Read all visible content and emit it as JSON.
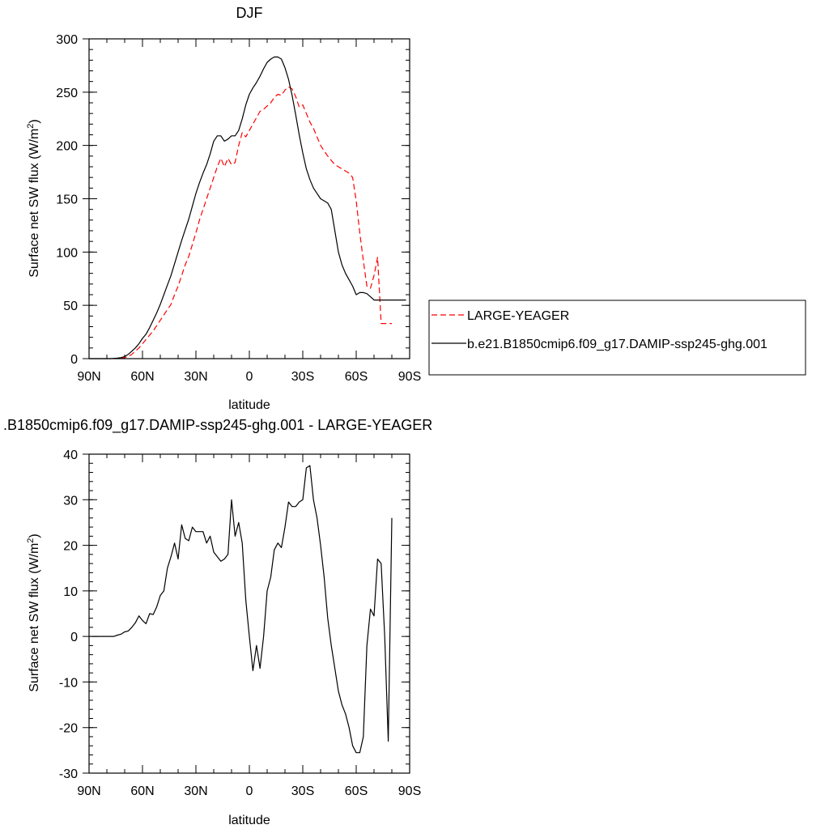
{
  "chart_data": [
    {
      "type": "line",
      "title": "DJF",
      "xlabel": "latitude",
      "ylabel_main": "Surface net SW flux (W/m",
      "ylabel_sup": "2",
      "ylabel_end": ")",
      "xlim": [
        90,
        -90
      ],
      "ylim": [
        0,
        300
      ],
      "x_ticks": [
        {
          "value": 90,
          "label": "90N"
        },
        {
          "value": 60,
          "label": "60N"
        },
        {
          "value": 30,
          "label": "30N"
        },
        {
          "value": 0,
          "label": "0"
        },
        {
          "value": -30,
          "label": "30S"
        },
        {
          "value": -60,
          "label": "60S"
        },
        {
          "value": -90,
          "label": "90S"
        }
      ],
      "y_ticks": [
        0,
        50,
        100,
        150,
        200,
        250,
        300
      ],
      "legend_position": "right",
      "series": [
        {
          "name": "LARGE-YEAGER",
          "color": "#ff0000",
          "dash": "dashed",
          "x": [
            72,
            70,
            68,
            66,
            64,
            62,
            60,
            58,
            56,
            54,
            52,
            50,
            48,
            46,
            44,
            42,
            40,
            38,
            36,
            34,
            32,
            30,
            28,
            26,
            24,
            22,
            20,
            18,
            16,
            14,
            12,
            10,
            8,
            6,
            4,
            2,
            0,
            -2,
            -4,
            -6,
            -8,
            -10,
            -12,
            -14,
            -16,
            -18,
            -20,
            -22,
            -24,
            -26,
            -28,
            -30,
            -32,
            -34,
            -36,
            -38,
            -40,
            -42,
            -44,
            -46,
            -48,
            -50,
            -52,
            -54,
            -56,
            -58,
            -60,
            -62,
            -64,
            -66,
            -68,
            -70,
            -72,
            -74,
            -76,
            -78,
            -80
          ],
          "y": [
            0,
            1,
            2,
            4,
            7,
            10,
            14,
            18,
            22,
            26,
            31,
            36,
            41,
            46,
            51,
            60,
            68,
            78,
            88,
            96,
            107,
            118,
            130,
            140,
            150,
            160,
            170,
            180,
            188,
            180,
            188,
            182,
            184,
            200,
            212,
            208,
            214,
            220,
            226,
            232,
            234,
            237,
            240,
            245,
            248,
            247,
            252,
            255,
            253,
            246,
            236,
            238,
            230,
            222,
            216,
            208,
            200,
            195,
            190,
            186,
            182,
            180,
            178,
            176,
            174,
            170,
            148,
            118,
            92,
            68,
            66,
            78,
            95,
            33,
            33,
            33,
            33
          ]
        },
        {
          "name": "b.e21.B1850cmip6.f09_g17.DAMIP-ssp245-ghg.001",
          "color": "#000000",
          "dash": "solid",
          "x": [
            90,
            86,
            82,
            78,
            74,
            72,
            70,
            68,
            66,
            64,
            62,
            60,
            58,
            56,
            54,
            52,
            50,
            48,
            46,
            44,
            42,
            40,
            38,
            36,
            34,
            32,
            30,
            28,
            26,
            24,
            22,
            20,
            18,
            16,
            14,
            12,
            10,
            8,
            6,
            4,
            2,
            0,
            -2,
            -4,
            -6,
            -8,
            -10,
            -12,
            -14,
            -16,
            -18,
            -20,
            -22,
            -24,
            -26,
            -28,
            -30,
            -32,
            -34,
            -36,
            -38,
            -40,
            -42,
            -44,
            -46,
            -48,
            -50,
            -52,
            -54,
            -56,
            -58,
            -60,
            -62,
            -64,
            -66,
            -68,
            -70,
            -72,
            -74,
            -76,
            -78,
            -80,
            -82,
            -84,
            -86,
            -88
          ],
          "y": [
            0,
            0,
            0,
            0,
            0.5,
            1,
            2,
            4,
            7,
            10,
            14,
            19,
            23,
            29,
            36,
            43,
            51,
            60,
            69,
            78,
            89,
            100,
            111,
            121,
            131,
            143,
            155,
            165,
            174,
            182,
            192,
            204,
            209,
            209,
            204,
            206,
            209,
            209,
            214,
            225,
            238,
            248,
            254,
            259,
            265,
            272,
            278,
            281,
            283,
            283,
            281,
            273,
            262,
            247,
            229,
            210,
            193,
            178,
            168,
            160,
            155,
            150,
            148,
            146,
            140,
            120,
            100,
            88,
            80,
            74,
            68,
            60,
            62,
            62,
            61,
            58,
            55,
            55,
            55,
            55,
            55,
            55,
            55,
            55,
            55,
            55
          ]
        }
      ]
    },
    {
      "type": "line",
      "title": ".B1850cmip6.f09_g17.DAMIP-ssp245-ghg.001 - LARGE-YEAGER",
      "xlabel": "latitude",
      "ylabel_main": "Surface net SW flux (W/m",
      "ylabel_sup": "2",
      "ylabel_end": ")",
      "xlim": [
        90,
        -90
      ],
      "ylim": [
        -30,
        40
      ],
      "x_ticks": [
        {
          "value": 90,
          "label": "90N"
        },
        {
          "value": 60,
          "label": "60N"
        },
        {
          "value": 30,
          "label": "30N"
        },
        {
          "value": 0,
          "label": "0"
        },
        {
          "value": -30,
          "label": "30S"
        },
        {
          "value": -60,
          "label": "60S"
        },
        {
          "value": -90,
          "label": "90S"
        }
      ],
      "y_ticks": [
        -30,
        -20,
        -10,
        0,
        10,
        20,
        30,
        40
      ],
      "series": [
        {
          "name": "",
          "color": "#000000",
          "dash": "solid",
          "x": [
            88,
            84,
            80,
            76,
            74,
            72,
            70,
            68,
            66,
            64,
            62,
            60,
            58,
            56,
            54,
            52,
            50,
            48,
            46,
            44,
            42,
            40,
            38,
            36,
            34,
            32,
            30,
            28,
            26,
            24,
            22,
            20,
            18,
            16,
            14,
            12,
            10,
            8,
            6,
            4,
            2,
            0,
            -2,
            -4,
            -6,
            -8,
            -10,
            -12,
            -14,
            -16,
            -18,
            -20,
            -22,
            -24,
            -26,
            -28,
            -30,
            -32,
            -34,
            -36,
            -38,
            -40,
            -42,
            -44,
            -46,
            -48,
            -50,
            -52,
            -54,
            -56,
            -58,
            -60,
            -62,
            -64,
            -66,
            -68,
            -70,
            -72,
            -74,
            -76,
            -78,
            -80
          ],
          "y": [
            0,
            0,
            0,
            0,
            0.3,
            0.5,
            1,
            1.2,
            2,
            3,
            4.5,
            3.5,
            2.8,
            5,
            4.8,
            6.5,
            9,
            10,
            15,
            17.5,
            20.5,
            17,
            24.5,
            21.5,
            21,
            24,
            23,
            23,
            23,
            20.5,
            22,
            18.5,
            17.5,
            16.5,
            17,
            18,
            30,
            22,
            25,
            20.5,
            8,
            0,
            -7.5,
            -2,
            -7,
            0,
            10,
            13,
            19,
            20.5,
            19.5,
            24,
            29.5,
            28.5,
            28.5,
            29.5,
            30,
            37,
            37.5,
            30,
            26,
            20,
            13,
            4,
            -2,
            -7,
            -12,
            -15,
            -17,
            -20,
            -24,
            -25.5,
            -25.5,
            -22,
            -2,
            6,
            4.5,
            17,
            16,
            0,
            -23,
            26
          ]
        }
      ]
    }
  ]
}
